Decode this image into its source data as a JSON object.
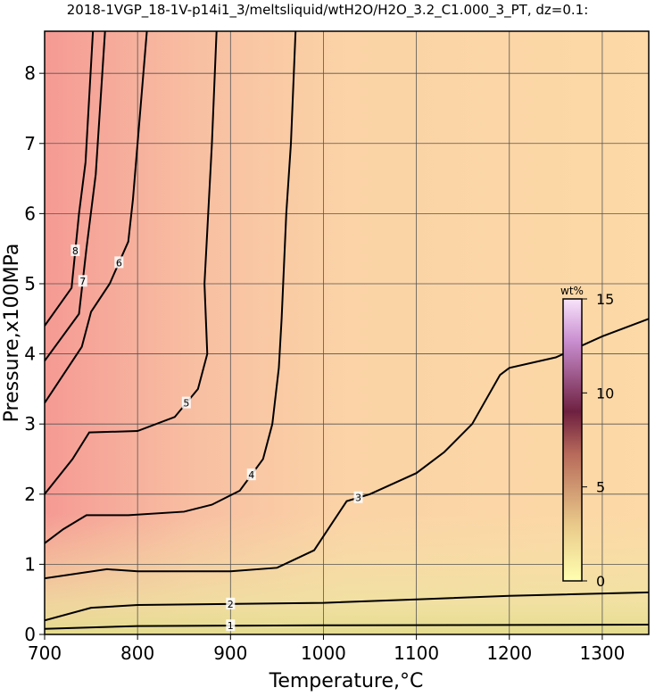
{
  "chart_data": {
    "type": "contour",
    "title": "2018-1VGP_18-1V-p14i1_3/meltsliquid/wtH2O/H2O_3.2_C1.000_3_PT, dz=0.1:",
    "x_label": "Temperature,°C",
    "y_label": "Pressure,x100MPa",
    "xlim": [
      700,
      1350
    ],
    "ylim": [
      0,
      8.6
    ],
    "xticks": [
      700,
      800,
      900,
      1000,
      1100,
      1200,
      1300
    ],
    "yticks": [
      0,
      1,
      2,
      3,
      4,
      5,
      6,
      7,
      8
    ],
    "grid": true,
    "color": "#000000",
    "contours": [
      {
        "level": 1,
        "x": [
          700,
          800,
          1000,
          1350
        ],
        "y": [
          0.08,
          0.12,
          0.13,
          0.14
        ]
      },
      {
        "level": 2,
        "x": [
          700,
          750,
          800,
          1000,
          1100,
          1200,
          1350
        ],
        "y": [
          0.2,
          0.38,
          0.42,
          0.45,
          0.5,
          0.55,
          0.6
        ]
      },
      {
        "level": 3,
        "x": [
          700,
          767,
          800,
          900,
          950,
          990,
          1010,
          1025,
          1050,
          1100,
          1130,
          1160,
          1190,
          1200,
          1250,
          1300,
          1350
        ],
        "y": [
          0.8,
          0.93,
          0.9,
          0.9,
          0.95,
          1.2,
          1.6,
          1.9,
          2.0,
          2.3,
          2.6,
          3.0,
          3.7,
          3.8,
          3.95,
          4.25,
          4.5
        ]
      },
      {
        "level": 4,
        "x": [
          700,
          720,
          745,
          790,
          850,
          880,
          910,
          935,
          945,
          952,
          955,
          960,
          965,
          970
        ],
        "y": [
          1.3,
          1.5,
          1.7,
          1.7,
          1.75,
          1.85,
          2.05,
          2.5,
          3.0,
          3.8,
          4.5,
          6.0,
          7.0,
          8.6
        ]
      },
      {
        "level": 5,
        "x": [
          700,
          730,
          748,
          800,
          840,
          865,
          875,
          872,
          876,
          880,
          885
        ],
        "y": [
          2.0,
          2.5,
          2.88,
          2.9,
          3.1,
          3.5,
          4.0,
          5.0,
          6.0,
          7.0,
          8.6
        ]
      },
      {
        "level": 6,
        "x": [
          700,
          740,
          750,
          770,
          790,
          795,
          800,
          810
        ],
        "y": [
          3.3,
          4.1,
          4.6,
          5.0,
          5.6,
          6.2,
          7.0,
          8.6
        ]
      },
      {
        "level": 7,
        "x": [
          700,
          737,
          745,
          755,
          765
        ],
        "y": [
          3.9,
          4.57,
          5.5,
          6.56,
          8.6
        ]
      },
      {
        "level": 8,
        "x": [
          700,
          729,
          737,
          744,
          752
        ],
        "y": [
          4.4,
          4.94,
          6.0,
          6.73,
          8.6
        ]
      }
    ],
    "colorbar": {
      "label": "wt%",
      "lim": [
        0,
        15
      ],
      "ticks": [
        0,
        5,
        10,
        15
      ]
    }
  }
}
